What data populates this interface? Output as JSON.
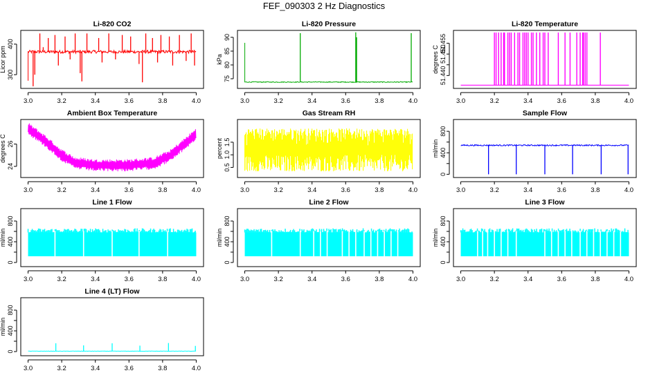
{
  "page": {
    "title": "FEF_090303  2 Hz Diagnostics"
  },
  "chart_data": [
    {
      "type": "line",
      "title": "Li-820 CO2",
      "xlabel": "",
      "ylabel": "Licor ppm",
      "color": "#ff0000",
      "xlim": [
        3.0,
        4.0
      ],
      "ylim": [
        255,
        445
      ],
      "xticks": [
        3.0,
        3.2,
        3.4,
        3.6,
        3.8,
        4.0
      ],
      "xtick_labels": [
        "3.0",
        "3.2",
        "3.4",
        "3.6",
        "3.8",
        "4.0"
      ],
      "yticks": [
        300,
        400
      ],
      "ytick_labels": [
        "300",
        "400"
      ],
      "series": [
        {
          "baseline": 375,
          "noise": 5,
          "start": [
            3.0,
            280
          ],
          "spikes": [
            [
              3.03,
              262
            ],
            [
              3.04,
              300
            ],
            [
              3.07,
              435
            ],
            [
              3.09,
              390
            ],
            [
              3.12,
              420
            ],
            [
              3.16,
              430
            ],
            [
              3.18,
              330
            ],
            [
              3.22,
              425
            ],
            [
              3.25,
              350
            ],
            [
              3.28,
              435
            ],
            [
              3.31,
              305
            ],
            [
              3.32,
              278
            ],
            [
              3.35,
              435
            ],
            [
              3.42,
              420
            ],
            [
              3.44,
              340
            ],
            [
              3.48,
              435
            ],
            [
              3.52,
              350
            ],
            [
              3.56,
              430
            ],
            [
              3.61,
              425
            ],
            [
              3.66,
              335
            ],
            [
              3.68,
              275
            ],
            [
              3.7,
              435
            ],
            [
              3.74,
              420
            ],
            [
              3.77,
              340
            ],
            [
              3.79,
              430
            ],
            [
              3.84,
              425
            ],
            [
              3.86,
              330
            ],
            [
              3.9,
              430
            ],
            [
              3.94,
              345
            ],
            [
              3.97,
              435
            ],
            [
              3.99,
              330
            ]
          ]
        }
      ]
    },
    {
      "type": "line",
      "title": "Li-820 Pressure",
      "xlabel": "",
      "ylabel": "kPa",
      "color": "#00aa00",
      "xlim": [
        3.0,
        4.0
      ],
      "ylim": [
        71.5,
        92.5
      ],
      "xticks": [
        3.0,
        3.2,
        3.4,
        3.6,
        3.8,
        4.0
      ],
      "xtick_labels": [
        "3.0",
        "3.2",
        "3.4",
        "3.6",
        "3.8",
        "4.0"
      ],
      "yticks": [
        75,
        80,
        85,
        90
      ],
      "ytick_labels": [
        "75",
        "80",
        "85",
        "90"
      ],
      "series": [
        {
          "baseline": 73.8,
          "noise": 0.15,
          "start": [
            3.0,
            88
          ],
          "spikes": [
            [
              3.33,
              91.5
            ],
            [
              3.66,
              91.8
            ],
            [
              3.665,
              90
            ],
            [
              3.99,
              91.5
            ]
          ]
        }
      ]
    },
    {
      "type": "line",
      "title": "Li-820 Temperature",
      "xlabel": "",
      "ylabel": "degrees C",
      "color": "#ff00ff",
      "xlim": [
        3.0,
        4.0
      ],
      "ylim": [
        51.434,
        51.461
      ],
      "xticks": [
        3.0,
        3.2,
        3.4,
        3.6,
        3.8,
        4.0
      ],
      "xtick_labels": [
        "3.0",
        "3.2",
        "3.4",
        "3.6",
        "3.8",
        "4.0"
      ],
      "yticks": [
        51.44,
        51.445,
        51.45,
        51.455
      ],
      "ytick_labels": [
        "51.440",
        "",
        "51.450",
        "51.455"
      ],
      "series": [
        {
          "baseline": 51.4355,
          "noise": 0,
          "level": 51.46,
          "pulses": [
            3.2,
            3.21,
            3.225,
            3.24,
            3.255,
            3.26,
            3.28,
            3.29,
            3.3,
            3.32,
            3.34,
            3.35,
            3.37,
            3.38,
            3.39,
            3.4,
            3.42,
            3.43,
            3.45,
            3.47,
            3.49,
            3.5,
            3.52,
            3.58,
            3.62,
            3.65,
            3.69,
            3.71,
            3.725,
            3.73,
            3.74,
            3.75,
            3.83
          ]
        }
      ]
    },
    {
      "type": "line",
      "title": "Ambient Box Temperature",
      "xlabel": "",
      "ylabel": "degrees C",
      "color": "#ff00ff",
      "xlim": [
        3.0,
        4.0
      ],
      "ylim": [
        23.0,
        28.2
      ],
      "xticks": [
        3.0,
        3.2,
        3.4,
        3.6,
        3.8,
        4.0
      ],
      "xtick_labels": [
        "3.0",
        "3.2",
        "3.4",
        "3.6",
        "3.8",
        "4.0"
      ],
      "yticks": [
        24,
        26
      ],
      "ytick_labels": [
        "24",
        "26"
      ],
      "series": [
        {
          "band": true,
          "half_width": 0.55,
          "knots": [
            [
              3.0,
              27.4
            ],
            [
              3.1,
              26.3
            ],
            [
              3.2,
              25.0
            ],
            [
              3.28,
              24.3
            ],
            [
              3.4,
              24.1
            ],
            [
              3.6,
              24.1
            ],
            [
              3.75,
              24.3
            ],
            [
              3.85,
              25.0
            ],
            [
              3.93,
              26.0
            ],
            [
              4.0,
              26.9
            ]
          ]
        }
      ]
    },
    {
      "type": "line",
      "title": "Gas Stream RH",
      "xlabel": "",
      "ylabel": "percent",
      "color": "#ffff00",
      "xlim": [
        3.0,
        4.0
      ],
      "ylim": [
        0.1,
        2.4
      ],
      "xticks": [
        3.0,
        3.2,
        3.4,
        3.6,
        3.8,
        4.0
      ],
      "xtick_labels": [
        "3.0",
        "3.2",
        "3.4",
        "3.6",
        "3.8",
        "4.0"
      ],
      "yticks": [
        0.5,
        1.0,
        1.5
      ],
      "ytick_labels": [
        "0.5",
        "1.0",
        "1.5"
      ],
      "series": [
        {
          "noise_fill": true,
          "top": 2.05,
          "bottom": 0.35,
          "min_top": 1.3,
          "max_bottom": 1.0
        }
      ]
    },
    {
      "type": "line",
      "title": "Sample Flow",
      "xlabel": "",
      "ylabel": "ml/min",
      "color": "#0000ff",
      "xlim": [
        3.0,
        4.0
      ],
      "ylim": [
        -60,
        1020
      ],
      "xticks": [
        3.0,
        3.2,
        3.4,
        3.6,
        3.8,
        4.0
      ],
      "xtick_labels": [
        "3.0",
        "3.2",
        "3.4",
        "3.6",
        "3.8",
        "4.0"
      ],
      "yticks": [
        0,
        200,
        400,
        600,
        800
      ],
      "ytick_labels": [
        "0",
        "",
        "400",
        "",
        "800"
      ],
      "series": [
        {
          "baseline": 540,
          "noise": 12,
          "drops": [
            3.165,
            3.33,
            3.5,
            3.665,
            3.835,
            3.995
          ],
          "drop_to": 0
        }
      ]
    },
    {
      "type": "line",
      "title": "Line 1 Flow",
      "xlabel": "",
      "ylabel": "ml/min",
      "color": "#00ffff",
      "xlim": [
        3.0,
        4.0
      ],
      "ylim": [
        -80,
        1040
      ],
      "xticks": [
        3.0,
        3.2,
        3.4,
        3.6,
        3.8,
        4.0
      ],
      "xtick_labels": [
        "3.0",
        "3.2",
        "3.4",
        "3.6",
        "3.8",
        "4.0"
      ],
      "yticks": [
        0,
        200,
        400,
        600,
        800
      ],
      "ytick_labels": [
        "0",
        "",
        "400",
        "",
        "800"
      ],
      "series": [
        {
          "bar_fill": true,
          "top": 580,
          "bottom": 120,
          "gaps": [
            3.16,
            3.33,
            3.5,
            3.66,
            3.83
          ]
        }
      ]
    },
    {
      "type": "line",
      "title": "Line 2 Flow",
      "xlabel": "",
      "ylabel": "ml/min",
      "color": "#00ffff",
      "xlim": [
        3.0,
        4.0
      ],
      "ylim": [
        -80,
        1040
      ],
      "xticks": [
        3.0,
        3.2,
        3.4,
        3.6,
        3.8,
        4.0
      ],
      "xtick_labels": [
        "3.0",
        "3.2",
        "3.4",
        "3.6",
        "3.8",
        "4.0"
      ],
      "yticks": [
        0,
        200,
        400,
        600,
        800
      ],
      "ytick_labels": [
        "0",
        "",
        "400",
        "",
        "800"
      ],
      "series": [
        {
          "bar_fill": true,
          "top": 580,
          "bottom": 120,
          "gaps": [
            3.16,
            3.33,
            3.41,
            3.45,
            3.49,
            3.58,
            3.62,
            3.66,
            3.71,
            3.75,
            3.79,
            3.83,
            3.87,
            3.91
          ]
        }
      ]
    },
    {
      "type": "line",
      "title": "Line 3 Flow",
      "xlabel": "",
      "ylabel": "ml/min",
      "color": "#00ffff",
      "xlim": [
        3.0,
        4.0
      ],
      "ylim": [
        -80,
        1040
      ],
      "xticks": [
        3.0,
        3.2,
        3.4,
        3.6,
        3.8,
        4.0
      ],
      "xtick_labels": [
        "3.0",
        "3.2",
        "3.4",
        "3.6",
        "3.8",
        "4.0"
      ],
      "yticks": [
        0,
        200,
        400,
        600,
        800
      ],
      "ytick_labels": [
        "0",
        "",
        "400",
        "",
        "800"
      ],
      "series": [
        {
          "bar_fill": true,
          "top": 580,
          "bottom": 120,
          "gaps": [
            3.1,
            3.13,
            3.16,
            3.2,
            3.24,
            3.28,
            3.33,
            3.5,
            3.54,
            3.58,
            3.62,
            3.66,
            3.71,
            3.75,
            3.79,
            3.83,
            3.87,
            3.91,
            3.95
          ]
        }
      ]
    },
    {
      "type": "line",
      "title": "Line 4 (LT) Flow",
      "xlabel": "",
      "ylabel": "ml/min",
      "color": "#00ffff",
      "xlim": [
        3.0,
        4.0
      ],
      "ylim": [
        -80,
        1040
      ],
      "xticks": [
        3.0,
        3.2,
        3.4,
        3.6,
        3.8,
        4.0
      ],
      "xtick_labels": [
        "3.0",
        "3.2",
        "3.4",
        "3.6",
        "3.8",
        "4.0"
      ],
      "yticks": [
        0,
        200,
        400,
        600,
        800
      ],
      "ytick_labels": [
        "0",
        "",
        "400",
        "",
        "800"
      ],
      "series": [
        {
          "baseline": 8,
          "noise": 3,
          "spikes": [
            [
              3.165,
              160
            ],
            [
              3.33,
              120
            ],
            [
              3.5,
              160
            ],
            [
              3.665,
              115
            ],
            [
              3.835,
              165
            ],
            [
              3.995,
              110
            ]
          ]
        }
      ]
    }
  ]
}
